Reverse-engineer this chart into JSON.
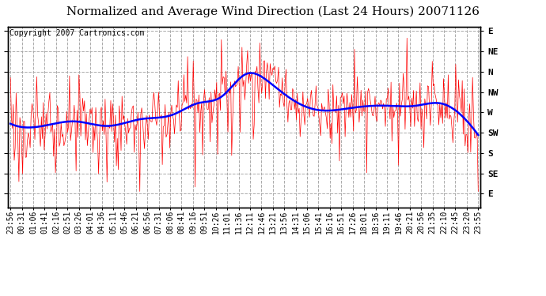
{
  "title": "Normalized and Average Wind Direction (Last 24 Hours) 20071126",
  "copyright": "Copyright 2007 Cartronics.com",
  "background_color": "#ffffff",
  "plot_bg_color": "#ffffff",
  "grid_color": "#aaaaaa",
  "red_line_color": "#ff0000",
  "blue_line_color": "#0000ff",
  "y_tick_labels": [
    "E",
    "NE",
    "N",
    "NW",
    "W",
    "SW",
    "S",
    "SE",
    "E"
  ],
  "y_tick_values": [
    0,
    45,
    90,
    135,
    180,
    225,
    270,
    315,
    360
  ],
  "ylim": [
    -10,
    390
  ],
  "x_tick_labels": [
    "23:56",
    "00:31",
    "01:06",
    "01:41",
    "02:16",
    "02:51",
    "03:26",
    "04:01",
    "04:36",
    "05:11",
    "05:46",
    "06:21",
    "06:56",
    "07:31",
    "08:06",
    "08:41",
    "09:16",
    "09:51",
    "10:26",
    "11:01",
    "11:36",
    "12:11",
    "12:46",
    "13:21",
    "13:56",
    "14:31",
    "15:06",
    "15:41",
    "16:16",
    "16:51",
    "17:26",
    "18:01",
    "18:36",
    "19:11",
    "19:46",
    "20:21",
    "20:56",
    "21:35",
    "22:10",
    "22:45",
    "23:20",
    "23:55"
  ],
  "title_fontsize": 11,
  "axis_fontsize": 7,
  "copyright_fontsize": 7,
  "blue_waypoints_t": [
    0,
    20,
    40,
    60,
    80,
    100,
    115,
    130,
    145,
    160,
    175,
    190,
    210,
    230,
    250,
    265,
    280,
    288
  ],
  "blue_waypoints_v": [
    205,
    210,
    200,
    210,
    195,
    185,
    160,
    145,
    95,
    115,
    155,
    175,
    170,
    165,
    165,
    160,
    195,
    230
  ]
}
